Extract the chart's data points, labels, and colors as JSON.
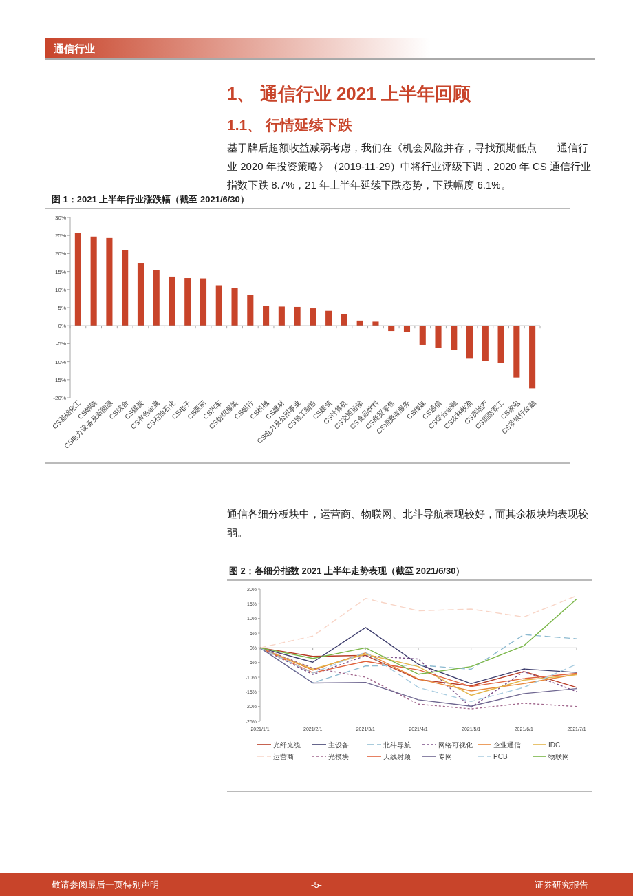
{
  "chart_data": [
    {
      "type": "bar",
      "title": "图 1：2021 上半年行业涨跌幅（截至 2021/6/30）",
      "annotations": [
        "通信行业",
        "1、 通信行业 2021 上半年回顾",
        "1.1、 行情延续下跌",
        "基于牌后超额收益减弱考虑，我们在《机会风险并存，寻找预期低点——通信行业 2020 年投资策略》（2019-11-29）中将行业评级下调，2020 年 CS 通信行业指数下跌 8.7%，21 年上半年延续下跌态势，下跌幅度 6.1%。"
      ],
      "categories": [
        "CS基础化工",
        "CS钢铁",
        "CS电力设备及新能源",
        "CS综合",
        "CS煤炭",
        "CS有色金属",
        "CS石油石化",
        "CS电子",
        "CS医药",
        "CS汽车",
        "CS纺织服装",
        "CS银行",
        "CS机械",
        "CS建材",
        "CS电力及公用事业",
        "CS轻工制造",
        "CS建筑",
        "CS计算机",
        "CS交通运输",
        "CS食品饮料",
        "CS商贸零售",
        "CS消费者服务",
        "CS传媒",
        "CS通信",
        "CS综合金融",
        "CS农林牧渔",
        "CS房地产",
        "CS国防军工",
        "CS家电",
        "CS非银行金融"
      ],
      "values": [
        25.7,
        24.7,
        24.3,
        20.9,
        17.4,
        15.4,
        13.6,
        13.2,
        13.1,
        11.2,
        10.5,
        8.5,
        5.4,
        5.3,
        5.2,
        4.8,
        4.1,
        3.1,
        1.4,
        1.1,
        -1.5,
        -1.7,
        -5.3,
        -6.1,
        -6.7,
        -9.0,
        -9.8,
        -10.4,
        -14.4,
        -17.4
      ],
      "color": "#c8442a",
      "ylim": [
        -20,
        30
      ],
      "yticks": [
        {
          "value": -20,
          "label": "-20%"
        },
        {
          "value": -15,
          "label": "-15%"
        },
        {
          "value": -10,
          "label": "-10%"
        },
        {
          "value": -5,
          "label": "-5%"
        },
        {
          "value": 0,
          "label": "0%"
        },
        {
          "value": 5,
          "label": "5%"
        },
        {
          "value": 10,
          "label": "10%"
        },
        {
          "value": 15,
          "label": "15%"
        },
        {
          "value": 20,
          "label": "20%"
        },
        {
          "value": 25,
          "label": "25%"
        },
        {
          "value": 30,
          "label": "30%"
        }
      ]
    },
    {
      "type": "line",
      "title": "图 2：各细分指数 2021 上半年走势表现（截至 2021/6/30）",
      "annotations": [
        "通信各细分板块中，运营商、物联网、北斗导航表现较好，而其余板块均表现较弱。",
        "敬请参阅最后一页特别声明",
        "-5-",
        "证券研究报告"
      ],
      "categories": [
        "2021/1/1",
        "2021/2/1",
        "2021/3/1",
        "2021/4/1",
        "2021/5/1",
        "2021/6/1",
        "2021/7/1"
      ],
      "ylim": [
        -25,
        20
      ],
      "yticks": [
        {
          "value": -25,
          "label": "-25%"
        },
        {
          "value": -20,
          "label": "-20%"
        },
        {
          "value": -15,
          "label": "-15%"
        },
        {
          "value": -10,
          "label": "-10%"
        },
        {
          "value": -5,
          "label": "-5%"
        },
        {
          "value": 0,
          "label": "0%"
        },
        {
          "value": 5,
          "label": "5%"
        },
        {
          "value": 10,
          "label": "10%"
        },
        {
          "value": 15,
          "label": "15%"
        },
        {
          "value": 20,
          "label": "20%"
        }
      ],
      "legend": "bottom",
      "line_style": "solid",
      "series": [
        {
          "name": "光纤光缆",
          "color": "#b83c26",
          "values": [
            0,
            -2.9,
            -2.6,
            -10.8,
            -13.0,
            -8.1,
            -13.5
          ]
        },
        {
          "name": "主设备",
          "color": "#3f3f6e",
          "values": [
            0,
            -4.9,
            6.9,
            -5.6,
            -12.2,
            -7.2,
            -8.4
          ]
        },
        {
          "name": "北斗导航",
          "color": "#8dbad0",
          "line_style": "dashed",
          "values": [
            0,
            -11.9,
            -6.2,
            -5.9,
            -7.3,
            4.5,
            3.1
          ]
        },
        {
          "name": "网络可视化",
          "color": "#7b4f88",
          "line_style": "dotted",
          "values": [
            0,
            -9.1,
            -2.7,
            -3.8,
            -20.3,
            -8.1,
            -14.9
          ]
        },
        {
          "name": "企业通信",
          "color": "#e8883a",
          "values": [
            0,
            -7.6,
            -1.7,
            -10.6,
            -14.7,
            -12.2,
            -9.0
          ]
        },
        {
          "name": "IDC",
          "color": "#e3b54a",
          "values": [
            0,
            -7.2,
            -2.2,
            -6.4,
            -16.2,
            -11.0,
            -9.2
          ]
        },
        {
          "name": "运营商",
          "color": "#f8d5c7",
          "line_style": "dashed",
          "values": [
            0,
            4.0,
            16.8,
            12.6,
            13.2,
            10.5,
            17.7
          ]
        },
        {
          "name": "光模块",
          "color": "#a0668c",
          "line_style": "dotted",
          "values": [
            0,
            -6.9,
            -10.0,
            -19.2,
            -20.8,
            -18.9,
            -20.0
          ]
        },
        {
          "name": "天线射频",
          "color": "#e0623c",
          "values": [
            0,
            -8.5,
            -4.6,
            -7.5,
            -13.2,
            -10.5,
            -8.7
          ]
        },
        {
          "name": "专网",
          "color": "#6e6690",
          "values": [
            0,
            -12.0,
            -11.8,
            -17.7,
            -19.9,
            -15.6,
            -13.9
          ]
        },
        {
          "name": "PCB",
          "color": "#a9cce0",
          "line_style": "dashed",
          "values": [
            0,
            -8.6,
            -1.5,
            -13.5,
            -18.3,
            -13.5,
            -5.6
          ]
        },
        {
          "name": "物联网",
          "color": "#7ab648",
          "values": [
            0,
            -3.6,
            0.0,
            -9.0,
            -6.4,
            0.7,
            16.6
          ]
        }
      ]
    }
  ]
}
